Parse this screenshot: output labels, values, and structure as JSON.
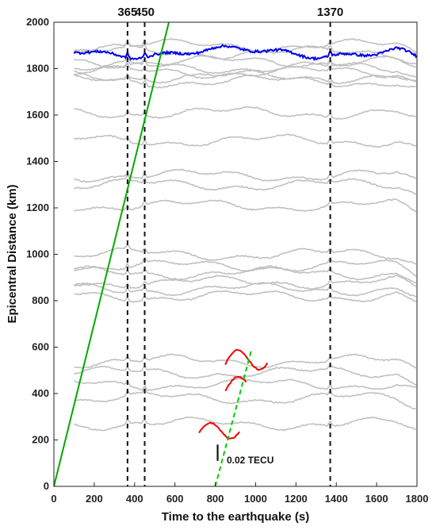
{
  "chart_data": {
    "type": "line",
    "title": "",
    "xlabel": "Time to the earthquake (s)",
    "ylabel": "Epicentral Distance (km)",
    "xlim": [
      0,
      1800
    ],
    "ylim": [
      0,
      2000
    ],
    "xticks": [
      0,
      200,
      400,
      600,
      800,
      1000,
      1200,
      1400,
      1600,
      1800
    ],
    "yticks": [
      0,
      200,
      400,
      600,
      800,
      1000,
      1200,
      1400,
      1600,
      1800,
      2000
    ],
    "grid": false,
    "legend": "none",
    "vertical_markers": [
      {
        "x": 365,
        "label": "365"
      },
      {
        "x": 450,
        "label": "450"
      },
      {
        "x": 1370,
        "label": "1370"
      }
    ],
    "reference_lines": [
      {
        "style": "solid",
        "color": "#00aa00",
        "points": [
          [
            0,
            0
          ],
          [
            570,
            2000
          ]
        ]
      },
      {
        "style": "dashed",
        "color": "#00cc00",
        "points": [
          [
            800,
            0
          ],
          [
            980,
            590
          ]
        ]
      }
    ],
    "scale_bar": {
      "label": "0.02 TECU",
      "x": 800,
      "y_range": [
        110,
        180
      ]
    },
    "colors": {
      "background": "#cfcfcf",
      "highlight_blue": "#0000ee",
      "highlight_red": "#ee0000",
      "axis": "#222222"
    },
    "series": [
      {
        "color": "#c0c0c0",
        "x_range": [
          100,
          1800
        ],
        "baseline": 1900
      },
      {
        "color": "#c0c0c0",
        "x_range": [
          100,
          1800
        ],
        "baseline": 1870
      },
      {
        "color": "#c0c0c0",
        "x_range": [
          100,
          1800
        ],
        "baseline": 1830
      },
      {
        "color": "#c0c0c0",
        "x_range": [
          100,
          1800
        ],
        "baseline": 1805
      },
      {
        "color": "#c0c0c0",
        "x_range": [
          100,
          1800
        ],
        "baseline": 1785
      },
      {
        "color": "#c0c0c0",
        "x_range": [
          100,
          1800
        ],
        "baseline": 1765
      },
      {
        "color": "#c0c0c0",
        "x_range": [
          100,
          1800
        ],
        "baseline": 1745
      },
      {
        "color": "#c0c0c0",
        "x_range": [
          100,
          1800
        ],
        "baseline": 1610
      },
      {
        "color": "#c0c0c0",
        "x_range": [
          100,
          1800
        ],
        "baseline": 1490
      },
      {
        "color": "#c0c0c0",
        "x_range": [
          100,
          1800
        ],
        "baseline": 1340
      },
      {
        "color": "#c0c0c0",
        "x_range": [
          100,
          1800
        ],
        "baseline": 1300
      },
      {
        "color": "#c0c0c0",
        "x_range": [
          100,
          1800
        ],
        "baseline": 1210
      },
      {
        "color": "#c0c0c0",
        "x_range": [
          100,
          1800
        ],
        "baseline": 1000
      },
      {
        "color": "#c0c0c0",
        "x_range": [
          100,
          1800
        ],
        "baseline": 950
      },
      {
        "color": "#c0c0c0",
        "x_range": [
          100,
          1800
        ],
        "baseline": 920
      },
      {
        "color": "#c0c0c0",
        "x_range": [
          100,
          1800
        ],
        "baseline": 880
      },
      {
        "color": "#c0c0c0",
        "x_range": [
          100,
          1800
        ],
        "baseline": 850
      },
      {
        "color": "#c0c0c0",
        "x_range": [
          100,
          1800
        ],
        "baseline": 820
      },
      {
        "color": "#c0c0c0",
        "x_range": [
          100,
          1800
        ],
        "baseline": 540
      },
      {
        "color": "#c0c0c0",
        "x_range": [
          100,
          1800
        ],
        "baseline": 490
      },
      {
        "color": "#c0c0c0",
        "x_range": [
          100,
          1800
        ],
        "baseline": 440
      },
      {
        "color": "#c0c0c0",
        "x_range": [
          100,
          1800
        ],
        "baseline": 380
      },
      {
        "color": "#c0c0c0",
        "x_range": [
          100,
          1800
        ],
        "baseline": 270
      },
      {
        "color": "#0000ee",
        "x_range": [
          100,
          1800
        ],
        "baseline": 1870
      },
      {
        "color": "#ee0000",
        "x_range": [
          850,
          1060
        ],
        "baseline": 540
      },
      {
        "color": "#ee0000",
        "x_range": [
          850,
          960
        ],
        "baseline": 420
      },
      {
        "color": "#ee0000",
        "x_range": [
          720,
          920
        ],
        "baseline": 240
      }
    ]
  }
}
